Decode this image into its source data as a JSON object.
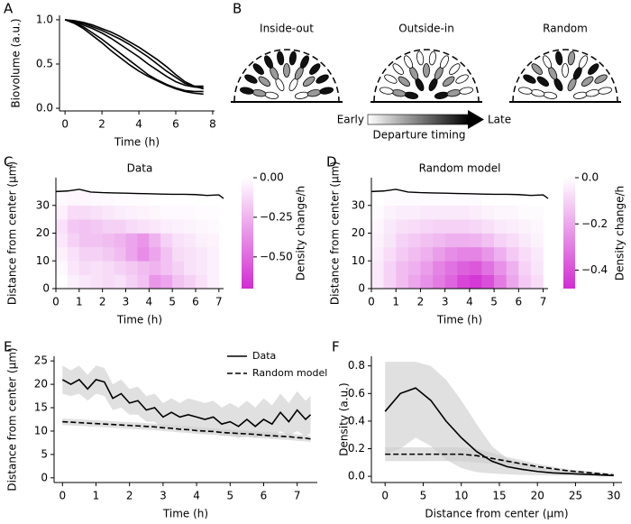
{
  "chart_data": [
    {
      "type": "line",
      "panel": "A",
      "xlabel": "Time (h)",
      "ylabel": "Biovolume (a.u.)",
      "x": [
        0,
        0.5,
        1,
        1.5,
        2,
        2.5,
        3,
        3.5,
        4,
        4.5,
        5,
        5.5,
        6,
        6.5,
        7,
        7.5
      ],
      "series": [
        {
          "color": "#000000",
          "values": [
            1,
            0.98,
            0.96,
            0.92,
            0.88,
            0.83,
            0.78,
            0.72,
            0.65,
            0.58,
            0.5,
            0.42,
            0.35,
            0.28,
            0.25,
            0.25
          ]
        },
        {
          "color": "#000000",
          "values": [
            1,
            0.98,
            0.94,
            0.9,
            0.85,
            0.79,
            0.72,
            0.65,
            0.58,
            0.5,
            0.43,
            0.36,
            0.3,
            0.26,
            0.24,
            0.23
          ]
        },
        {
          "color": "#000000",
          "values": [
            1,
            0.97,
            0.92,
            0.85,
            0.78,
            0.7,
            0.62,
            0.54,
            0.46,
            0.38,
            0.32,
            0.27,
            0.23,
            0.2,
            0.19,
            0.19
          ]
        },
        {
          "color": "#000000",
          "values": [
            1,
            0.96,
            0.9,
            0.82,
            0.74,
            0.65,
            0.57,
            0.49,
            0.42,
            0.36,
            0.31,
            0.26,
            0.22,
            0.19,
            0.17,
            0.16
          ]
        },
        {
          "color": "#000000",
          "values": [
            1,
            0.99,
            0.97,
            0.94,
            0.9,
            0.86,
            0.81,
            0.75,
            0.69,
            0.62,
            0.55,
            0.47,
            0.38,
            0.3,
            0.25,
            0.22
          ]
        }
      ],
      "xlim": [
        -0.3,
        8.1
      ],
      "ylim": [
        -0.03,
        1.05
      ],
      "xticks": [
        0,
        2,
        4,
        6,
        8
      ],
      "yticks": [
        {
          "value": 0,
          "label": "0.0"
        },
        {
          "value": 0.5,
          "label": "0.5"
        },
        {
          "value": 1,
          "label": "1.0"
        }
      ]
    },
    {
      "type": "diagram",
      "panel": "B",
      "titles": [
        "Inside-out",
        "Outside-in",
        "Random"
      ],
      "scale_labels": [
        "Early",
        "Late"
      ],
      "scale_title": "Departure timing"
    },
    {
      "type": "heatmap",
      "panel": "C",
      "title": "Data",
      "xlabel": "Time (h)",
      "ylabel": "Distance from center (µm)",
      "colorbar_label": "Density change/h",
      "colors": [
        "#ffffff",
        "#d22cd2"
      ],
      "x_edges": [
        0,
        0.5,
        1,
        1.5,
        2,
        2.5,
        3,
        3.5,
        4,
        4.5,
        5,
        5.5,
        6,
        6.5,
        7
      ],
      "y_edges": [
        0,
        5,
        10,
        15,
        20,
        25,
        30,
        35
      ],
      "values": [
        [
          0,
          -0.05,
          -0.08,
          -0.1,
          -0.12,
          -0.1,
          -0.15,
          -0.2,
          -0.35,
          -0.3,
          -0.2,
          -0.15,
          -0.1,
          -0.05
        ],
        [
          -0.02,
          -0.08,
          -0.12,
          -0.1,
          -0.12,
          -0.15,
          -0.18,
          -0.22,
          -0.25,
          -0.2,
          -0.15,
          -0.1,
          -0.08,
          -0.05
        ],
        [
          -0.05,
          -0.1,
          -0.15,
          -0.15,
          -0.18,
          -0.22,
          -0.3,
          -0.38,
          -0.3,
          -0.2,
          -0.12,
          -0.1,
          -0.08,
          -0.05
        ],
        [
          -0.08,
          -0.15,
          -0.2,
          -0.2,
          -0.22,
          -0.25,
          -0.3,
          -0.35,
          -0.25,
          -0.15,
          -0.1,
          -0.08,
          -0.05,
          -0.04
        ],
        [
          -0.1,
          -0.18,
          -0.2,
          -0.18,
          -0.15,
          -0.15,
          -0.12,
          -0.1,
          -0.08,
          -0.06,
          -0.05,
          -0.04,
          -0.03,
          -0.02
        ],
        [
          -0.05,
          -0.12,
          -0.12,
          -0.1,
          -0.08,
          -0.06,
          -0.05,
          -0.04,
          -0.03,
          -0.02,
          -0.02,
          -0.02,
          -0.01,
          -0.01
        ],
        [
          -0.02,
          -0.03,
          -0.03,
          -0.02,
          -0.02,
          -0.01,
          -0.01,
          -0.01,
          0,
          0,
          0,
          0,
          0,
          0
        ]
      ],
      "line": {
        "color": "#000000",
        "x": [
          0,
          0.5,
          1,
          1.5,
          2,
          2.5,
          3,
          3.5,
          4,
          4.5,
          5,
          5.5,
          6,
          6.5,
          7,
          7.2
        ],
        "values": [
          35,
          35.2,
          35.8,
          34.8,
          34.6,
          34.5,
          34.4,
          34.3,
          34.2,
          34.1,
          34,
          34,
          33.9,
          33.6,
          33.8,
          32.5
        ]
      },
      "xlim": [
        0,
        7.2
      ],
      "ylim": [
        0,
        40
      ],
      "xticks": [
        0,
        1,
        2,
        3,
        4,
        5,
        6,
        7
      ],
      "yticks": [
        0,
        10,
        20,
        30
      ],
      "clim": [
        -0.7,
        0
      ],
      "cticks": [
        {
          "value": 0,
          "label": "0.00"
        },
        {
          "value": -0.25,
          "label": "−0.25"
        },
        {
          "value": -0.5,
          "label": "−0.50"
        }
      ]
    },
    {
      "type": "heatmap",
      "panel": "D",
      "title": "Random model",
      "xlabel": "Time (h)",
      "ylabel": "Distance from center (µm)",
      "colorbar_label": "Density change/h",
      "colors": [
        "#ffffff",
        "#d22cd2"
      ],
      "x_edges": [
        0,
        0.5,
        1,
        1.5,
        2,
        2.5,
        3,
        3.5,
        4,
        4.5,
        5,
        5.5,
        6,
        6.5,
        7
      ],
      "y_edges": [
        0,
        5,
        10,
        15,
        20,
        25,
        30,
        35
      ],
      "values": [
        [
          -0.05,
          -0.1,
          -0.15,
          -0.2,
          -0.25,
          -0.3,
          -0.35,
          -0.42,
          -0.45,
          -0.4,
          -0.3,
          -0.2,
          -0.12,
          -0.08
        ],
        [
          -0.05,
          -0.1,
          -0.15,
          -0.18,
          -0.22,
          -0.28,
          -0.32,
          -0.36,
          -0.38,
          -0.32,
          -0.25,
          -0.18,
          -0.1,
          -0.06
        ],
        [
          -0.04,
          -0.08,
          -0.12,
          -0.15,
          -0.18,
          -0.22,
          -0.26,
          -0.28,
          -0.28,
          -0.24,
          -0.18,
          -0.12,
          -0.08,
          -0.05
        ],
        [
          -0.03,
          -0.06,
          -0.1,
          -0.12,
          -0.14,
          -0.16,
          -0.18,
          -0.18,
          -0.17,
          -0.14,
          -0.1,
          -0.08,
          -0.05,
          -0.03
        ],
        [
          -0.02,
          -0.05,
          -0.07,
          -0.08,
          -0.09,
          -0.1,
          -0.1,
          -0.1,
          -0.09,
          -0.07,
          -0.05,
          -0.04,
          -0.03,
          -0.02
        ],
        [
          -0.01,
          -0.03,
          -0.04,
          -0.04,
          -0.05,
          -0.05,
          -0.05,
          -0.05,
          -0.04,
          -0.03,
          -0.02,
          -0.02,
          -0.01,
          -0.01
        ],
        [
          0,
          -0.01,
          -0.01,
          -0.01,
          -0.01,
          -0.01,
          -0.01,
          -0.01,
          -0.01,
          0,
          0,
          0,
          0,
          0
        ]
      ],
      "line": {
        "color": "#000000",
        "x": [
          0,
          0.5,
          1,
          1.5,
          2,
          2.5,
          3,
          3.5,
          4,
          4.5,
          5,
          5.5,
          6,
          6.5,
          7,
          7.2
        ],
        "values": [
          35,
          35.2,
          35.8,
          34.8,
          34.6,
          34.5,
          34.4,
          34.3,
          34.2,
          34.1,
          34,
          34,
          33.9,
          33.6,
          33.8,
          32.5
        ]
      },
      "xlim": [
        0,
        7.2
      ],
      "ylim": [
        0,
        40
      ],
      "xticks": [
        0,
        1,
        2,
        3,
        4,
        5,
        6,
        7
      ],
      "yticks": [
        0,
        10,
        20,
        30
      ],
      "clim": [
        -0.48,
        0
      ],
      "cticks": [
        {
          "value": 0,
          "label": "0.0"
        },
        {
          "value": -0.2,
          "label": "−0.2"
        },
        {
          "value": -0.4,
          "label": "−0.4"
        }
      ]
    },
    {
      "type": "line",
      "panel": "E",
      "xlabel": "Time (h)",
      "ylabel": "Distance from center (µm)",
      "legend": "upper right",
      "band_color": "#cccccc",
      "x": [
        0,
        0.25,
        0.5,
        0.75,
        1,
        1.25,
        1.5,
        1.75,
        2,
        2.25,
        2.5,
        2.75,
        3,
        3.25,
        3.5,
        3.75,
        4,
        4.25,
        4.5,
        4.75,
        5,
        5.25,
        5.5,
        5.75,
        6,
        6.25,
        6.5,
        6.75,
        7,
        7.25,
        7.4
      ],
      "series": [
        {
          "name": "Data",
          "color": "#000000",
          "linestyle": "solid",
          "values": [
            21,
            20,
            21,
            19,
            21,
            20.5,
            17,
            18,
            16,
            16.5,
            14.5,
            15,
            13,
            14,
            13,
            13.5,
            13,
            12.5,
            13,
            11.5,
            12,
            11,
            12.5,
            11,
            12.5,
            11.5,
            14,
            12,
            14.5,
            12.5,
            13.5
          ],
          "lower": [
            18,
            17.5,
            18,
            16.5,
            18,
            17.5,
            14.5,
            15,
            13.5,
            13.5,
            12,
            12,
            10.5,
            11,
            10.5,
            10.5,
            10,
            9.5,
            10,
            9,
            9,
            8.5,
            9,
            8.5,
            9,
            8.5,
            10,
            9,
            10,
            9,
            9.5
          ],
          "upper": [
            24,
            23,
            24,
            22,
            24,
            23.5,
            20,
            21,
            19,
            19.5,
            17.5,
            18,
            16,
            17,
            16,
            17,
            16.5,
            16,
            16.5,
            15,
            16,
            15,
            16.5,
            15,
            17,
            15.5,
            18,
            16,
            18.5,
            16.5,
            17.5
          ]
        },
        {
          "name": "Random model",
          "color": "#000000",
          "linestyle": "dashed",
          "values": [
            12,
            11.9,
            11.8,
            11.7,
            11.6,
            11.5,
            11.4,
            11.3,
            11.2,
            11.1,
            11,
            10.9,
            10.7,
            10.6,
            10.4,
            10.3,
            10.1,
            10,
            9.9,
            9.7,
            9.6,
            9.5,
            9.4,
            9.3,
            9.1,
            9,
            8.9,
            8.8,
            8.6,
            8.5,
            8.3
          ],
          "lower": [
            11.3,
            11.2,
            11.1,
            11,
            10.9,
            10.8,
            10.7,
            10.6,
            10.5,
            10.4,
            10.3,
            10.2,
            10,
            9.9,
            9.7,
            9.6,
            9.4,
            9.3,
            9.2,
            9,
            8.9,
            8.8,
            8.7,
            8.6,
            8.4,
            8.3,
            8.2,
            8.1,
            7.9,
            7.8,
            7.6
          ],
          "upper": [
            12.7,
            12.6,
            12.5,
            12.4,
            12.3,
            12.2,
            12.1,
            12,
            11.9,
            11.8,
            11.7,
            11.6,
            11.4,
            11.3,
            11.1,
            11,
            10.8,
            10.7,
            10.6,
            10.4,
            10.3,
            10.2,
            10.1,
            10,
            9.8,
            9.7,
            9.6,
            9.5,
            9.3,
            9.2,
            9
          ]
        }
      ],
      "xlim": [
        -0.25,
        7.6
      ],
      "ylim": [
        -1,
        26
      ],
      "xticks": [
        0,
        1,
        2,
        3,
        4,
        5,
        6,
        7
      ],
      "yticks": [
        0,
        5,
        10,
        15,
        20,
        25
      ]
    },
    {
      "type": "line",
      "panel": "F",
      "xlabel": "Distance from center (µm)",
      "ylabel": "Density (a.u.)",
      "band_color": "#cccccc",
      "x": [
        0,
        2,
        4,
        6,
        8,
        10,
        12,
        14,
        16,
        18,
        20,
        22,
        24,
        26,
        28,
        30
      ],
      "series": [
        {
          "name": "Data",
          "color": "#000000",
          "linestyle": "solid",
          "values": [
            0.47,
            0.6,
            0.64,
            0.55,
            0.4,
            0.28,
            0.18,
            0.11,
            0.07,
            0.05,
            0.035,
            0.025,
            0.02,
            0.015,
            0.01,
            0.005
          ],
          "lower": [
            0.16,
            0.2,
            0.28,
            0.22,
            0.12,
            0.06,
            0.03,
            0.02,
            0.015,
            0.01,
            0.008,
            0.006,
            0.005,
            0.004,
            0.003,
            0.002
          ],
          "upper": [
            0.83,
            0.83,
            0.83,
            0.8,
            0.7,
            0.55,
            0.38,
            0.22,
            0.13,
            0.09,
            0.065,
            0.05,
            0.04,
            0.03,
            0.02,
            0.01
          ]
        },
        {
          "name": "Random model",
          "color": "#000000",
          "linestyle": "dashed",
          "values": [
            0.16,
            0.16,
            0.16,
            0.16,
            0.16,
            0.16,
            0.15,
            0.13,
            0.11,
            0.09,
            0.07,
            0.055,
            0.04,
            0.03,
            0.02,
            0.01
          ],
          "lower": [
            0.11,
            0.11,
            0.11,
            0.11,
            0.11,
            0.11,
            0.1,
            0.09,
            0.08,
            0.065,
            0.05,
            0.04,
            0.03,
            0.02,
            0.012,
            0.005
          ],
          "upper": [
            0.21,
            0.21,
            0.21,
            0.21,
            0.21,
            0.21,
            0.2,
            0.17,
            0.14,
            0.115,
            0.09,
            0.07,
            0.05,
            0.04,
            0.028,
            0.015
          ]
        }
      ],
      "xlim": [
        -1.8,
        31.1
      ],
      "ylim": [
        -0.045,
        0.87
      ],
      "xticks": [
        0,
        5,
        10,
        15,
        20,
        25,
        30
      ],
      "yticks": [
        {
          "value": 0,
          "label": "0.0"
        },
        {
          "value": 0.2,
          "label": "0.2"
        },
        {
          "value": 0.4,
          "label": "0.4"
        },
        {
          "value": 0.6,
          "label": "0.6"
        },
        {
          "value": 0.8,
          "label": "0.8"
        }
      ]
    }
  ]
}
